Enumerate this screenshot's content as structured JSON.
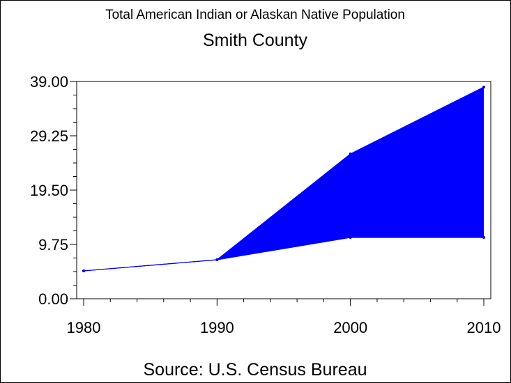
{
  "chart_data": {
    "type": "area",
    "title": "Total American Indian or Alaskan Native Population",
    "subtitle": "Smith County",
    "footnote": "Source: U.S. Census Bureau",
    "x": [
      1980,
      1990,
      2000,
      2010
    ],
    "x_tick_labels": [
      "1980",
      "1990",
      "2000",
      "2010"
    ],
    "ylim": [
      0,
      39
    ],
    "y_ticks": [
      0,
      9.75,
      19.5,
      29.25,
      39
    ],
    "y_tick_labels": [
      "0.00",
      "9.75",
      "19.50",
      "29.25",
      "39.00"
    ],
    "series": [
      {
        "values": [
          5,
          7,
          26,
          38
        ]
      },
      {
        "values": [
          5,
          7,
          11,
          11
        ]
      }
    ],
    "fill_between_series": true,
    "colors": {
      "series": "#0000ff",
      "fill": "#0000ff",
      "axes": "#000000"
    },
    "grid": false,
    "legend": "none"
  }
}
